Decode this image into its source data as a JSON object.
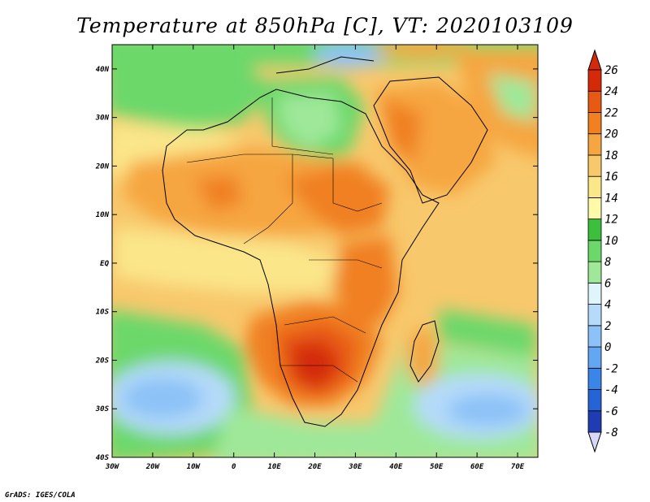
{
  "map": {
    "title": "Temperature at 850hPa [C], VT: 2020103109",
    "credit": "GrADS: IGES/COLA",
    "lon_labels": [
      "30W",
      "20W",
      "10W",
      "0",
      "10E",
      "20E",
      "30E",
      "40E",
      "50E",
      "60E",
      "70E"
    ],
    "lat_labels": [
      "40N",
      "30N",
      "20N",
      "10N",
      "EQ",
      "10S",
      "20S",
      "30S",
      "40S"
    ],
    "lon_range": [
      -30,
      75
    ],
    "lat_range": [
      -40,
      45
    ]
  },
  "colorbar": {
    "labels": [
      "-8",
      "-6",
      "-4",
      "-2",
      "0",
      "2",
      "4",
      "6",
      "8",
      "10",
      "12",
      "14",
      "16",
      "18",
      "20",
      "22",
      "24",
      "26"
    ],
    "colors": [
      "#1a1a6e",
      "#1f3cb4",
      "#2563d6",
      "#3a86e8",
      "#63a6f2",
      "#8cc2f7",
      "#b5dafa",
      "#e0f5fb",
      "#9fe89a",
      "#6cd86a",
      "#3cbf3c",
      "#fffaaa",
      "#fbe68a",
      "#f8c86c",
      "#f6a640",
      "#f08020",
      "#e85a14",
      "#d42a0a"
    ]
  }
}
